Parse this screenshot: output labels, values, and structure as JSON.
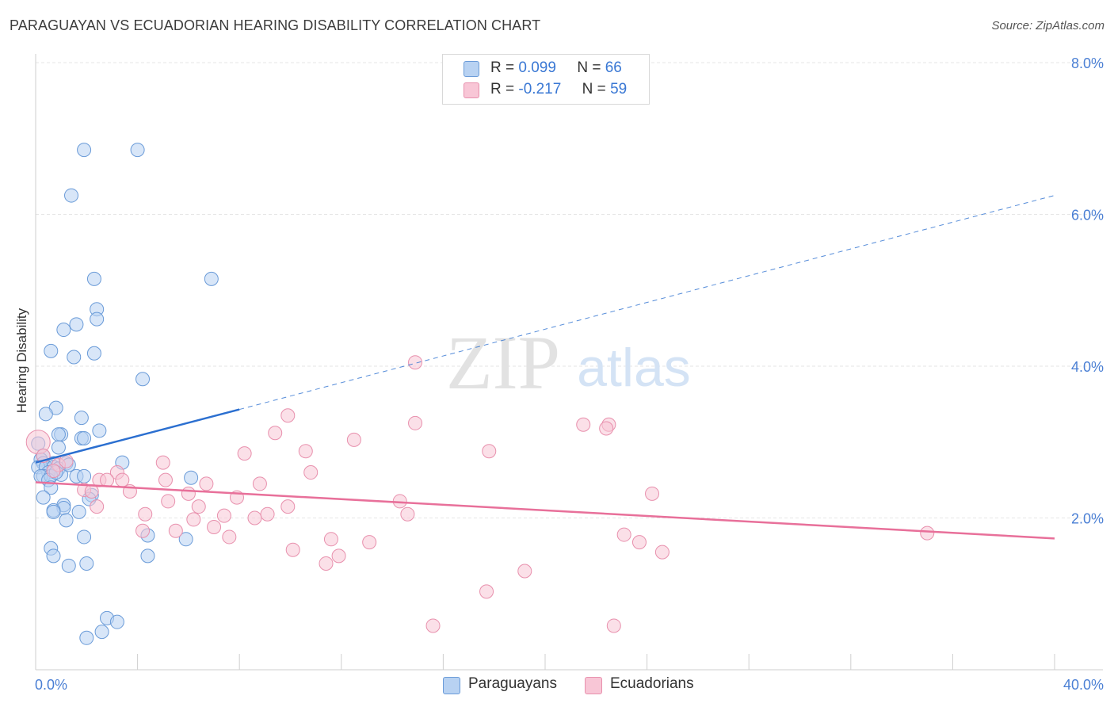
{
  "header": {
    "title": "PARAGUAYAN VS ECUADORIAN HEARING DISABILITY CORRELATION CHART",
    "source": "Source: ZipAtlas.com"
  },
  "legend_top": {
    "rows": [
      {
        "r_label": "R =",
        "r_value": "0.099",
        "n_label": "N =",
        "n_value": "66"
      },
      {
        "r_label": "R =",
        "r_value": "-0.217",
        "n_label": "N =",
        "n_value": "59"
      }
    ]
  },
  "legend_bottom": {
    "items": [
      "Paraguayans",
      "Ecuadorians"
    ]
  },
  "watermark": {
    "zip": "ZIP",
    "atlas": "atlas"
  },
  "colors": {
    "paraguayans_fill": "#b8d2f2",
    "paraguayans_stroke": "#6a9bd8",
    "paraguayans_line": "#2b6fd0",
    "ecuadorians_fill": "#f8c6d6",
    "ecuadorians_stroke": "#e890ad",
    "ecuadorians_line": "#e8709a",
    "tick_label": "#4a7fd4",
    "grid": "#e6e6e6"
  },
  "chart_data": {
    "type": "scatter",
    "title": "PARAGUAYAN VS ECUADORIAN HEARING DISABILITY CORRELATION CHART",
    "xlabel": "",
    "ylabel": "Hearing Disability",
    "xlim": [
      0,
      40
    ],
    "ylim": [
      0,
      8
    ],
    "x_tick_labels": [
      "0.0%",
      "40.0%"
    ],
    "y_ticks": [
      2,
      4,
      6,
      8
    ],
    "y_tick_labels": [
      "2.0%",
      "4.0%",
      "6.0%",
      "8.0%"
    ],
    "grid": true,
    "legend_position": "top-center",
    "series": [
      {
        "name": "Paraguayans",
        "r": 0.099,
        "n": 66,
        "trend": {
          "x": [
            0,
            8
          ],
          "y": [
            2.73,
            3.43
          ],
          "dashed_extension": {
            "x": [
              8,
              40
            ],
            "y": [
              3.43,
              6.25
            ]
          }
        },
        "points": [
          [
            1.9,
            6.85
          ],
          [
            4.0,
            6.85
          ],
          [
            1.4,
            6.25
          ],
          [
            6.9,
            5.15
          ],
          [
            2.3,
            5.15
          ],
          [
            2.4,
            4.75
          ],
          [
            2.4,
            4.62
          ],
          [
            1.6,
            4.55
          ],
          [
            1.1,
            4.48
          ],
          [
            0.6,
            4.2
          ],
          [
            2.3,
            4.17
          ],
          [
            1.5,
            4.12
          ],
          [
            4.2,
            3.83
          ],
          [
            0.8,
            3.45
          ],
          [
            0.4,
            3.37
          ],
          [
            1.8,
            3.32
          ],
          [
            2.5,
            3.15
          ],
          [
            1.0,
            3.1
          ],
          [
            0.9,
            3.1
          ],
          [
            1.8,
            3.05
          ],
          [
            1.9,
            3.05
          ],
          [
            0.1,
            2.98
          ],
          [
            0.9,
            2.93
          ],
          [
            0.3,
            2.82
          ],
          [
            0.2,
            2.77
          ],
          [
            0.3,
            2.72
          ],
          [
            0.7,
            2.72
          ],
          [
            1.2,
            2.72
          ],
          [
            0.1,
            2.67
          ],
          [
            0.4,
            2.67
          ],
          [
            0.7,
            2.67
          ],
          [
            0.9,
            2.65
          ],
          [
            3.4,
            2.73
          ],
          [
            0.5,
            2.6
          ],
          [
            0.3,
            2.55
          ],
          [
            0.2,
            2.55
          ],
          [
            1.0,
            2.57
          ],
          [
            0.6,
            2.55
          ],
          [
            1.6,
            2.55
          ],
          [
            1.9,
            2.55
          ],
          [
            0.5,
            2.5
          ],
          [
            6.1,
            2.53
          ],
          [
            0.6,
            2.4
          ],
          [
            0.3,
            2.27
          ],
          [
            2.2,
            2.3
          ],
          [
            2.1,
            2.25
          ],
          [
            1.1,
            2.17
          ],
          [
            1.1,
            2.13
          ],
          [
            0.7,
            2.1
          ],
          [
            0.7,
            2.08
          ],
          [
            1.7,
            2.08
          ],
          [
            1.2,
            1.97
          ],
          [
            4.4,
            1.77
          ],
          [
            1.9,
            1.75
          ],
          [
            5.9,
            1.72
          ],
          [
            0.6,
            1.6
          ],
          [
            0.7,
            1.5
          ],
          [
            4.4,
            1.5
          ],
          [
            1.3,
            1.37
          ],
          [
            2.0,
            1.4
          ],
          [
            2.8,
            0.68
          ],
          [
            3.2,
            0.63
          ],
          [
            2.6,
            0.5
          ],
          [
            2.0,
            0.42
          ],
          [
            0.8,
            2.6
          ],
          [
            1.3,
            2.7
          ]
        ]
      },
      {
        "name": "Ecuadorians",
        "r": -0.217,
        "n": 59,
        "trend": {
          "x": [
            0,
            40
          ],
          "y": [
            2.47,
            1.73
          ]
        },
        "points": [
          [
            0.1,
            3.0
          ],
          [
            14.9,
            4.05
          ],
          [
            9.9,
            3.35
          ],
          [
            14.9,
            3.25
          ],
          [
            21.5,
            3.23
          ],
          [
            22.5,
            3.23
          ],
          [
            22.4,
            3.18
          ],
          [
            9.4,
            3.12
          ],
          [
            12.5,
            3.03
          ],
          [
            10.6,
            2.88
          ],
          [
            8.2,
            2.85
          ],
          [
            17.8,
            2.88
          ],
          [
            0.3,
            2.82
          ],
          [
            0.9,
            2.7
          ],
          [
            1.2,
            2.75
          ],
          [
            5.0,
            2.73
          ],
          [
            3.2,
            2.6
          ],
          [
            10.8,
            2.6
          ],
          [
            2.5,
            2.5
          ],
          [
            2.8,
            2.5
          ],
          [
            3.4,
            2.5
          ],
          [
            5.1,
            2.5
          ],
          [
            6.7,
            2.45
          ],
          [
            8.8,
            2.45
          ],
          [
            1.9,
            2.37
          ],
          [
            2.2,
            2.35
          ],
          [
            3.7,
            2.35
          ],
          [
            6.0,
            2.32
          ],
          [
            7.9,
            2.27
          ],
          [
            24.2,
            2.32
          ],
          [
            14.3,
            2.22
          ],
          [
            5.2,
            2.22
          ],
          [
            2.4,
            2.15
          ],
          [
            6.4,
            2.15
          ],
          [
            9.9,
            2.15
          ],
          [
            4.3,
            2.05
          ],
          [
            7.4,
            2.03
          ],
          [
            8.6,
            2.0
          ],
          [
            9.1,
            2.05
          ],
          [
            14.6,
            2.05
          ],
          [
            6.2,
            1.98
          ],
          [
            7.0,
            1.88
          ],
          [
            4.2,
            1.83
          ],
          [
            5.5,
            1.83
          ],
          [
            7.6,
            1.75
          ],
          [
            11.6,
            1.72
          ],
          [
            13.1,
            1.68
          ],
          [
            23.1,
            1.78
          ],
          [
            23.7,
            1.68
          ],
          [
            35.0,
            1.8
          ],
          [
            10.1,
            1.58
          ],
          [
            11.9,
            1.5
          ],
          [
            11.4,
            1.4
          ],
          [
            24.6,
            1.55
          ],
          [
            19.2,
            1.3
          ],
          [
            17.7,
            1.03
          ],
          [
            15.6,
            0.58
          ],
          [
            22.7,
            0.58
          ],
          [
            0.7,
            2.62
          ]
        ]
      }
    ]
  }
}
